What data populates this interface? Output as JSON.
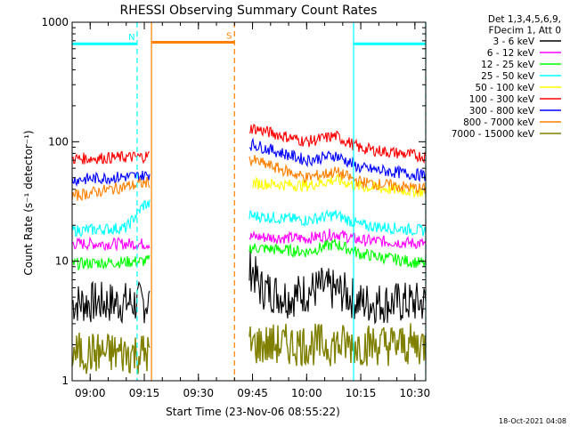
{
  "chart_data": {
    "type": "line",
    "title": "RHESSI Observing Summary Count Rates",
    "xlabel": "Start Time (23-Nov-06 08:55:22)",
    "ylabel": "Count Rate (s⁻¹ detector⁻¹)",
    "y_scale": "log",
    "ylim": [
      1,
      1000
    ],
    "xlim": [
      "08:55",
      "10:33"
    ],
    "x_ticks": [
      "09:00",
      "09:15",
      "09:30",
      "09:45",
      "10:00",
      "10:15",
      "10:30"
    ],
    "y_ticks": [
      "1",
      "10",
      "100",
      "1000"
    ],
    "legend_header": [
      "Det 1,3,4,5,6,9,",
      "FDecim 1, Att 0"
    ],
    "legend_position": "top-right",
    "series": [
      {
        "name": "3 - 6 keV",
        "color": "#000000",
        "x": [
          "08:55",
          "09:14",
          "09:15",
          "09:45",
          "09:47",
          "09:55",
          "10:04",
          "10:10",
          "10:15",
          "10:33"
        ],
        "y": [
          4.5,
          4.5,
          4.5,
          8.5,
          6.0,
          5.0,
          6.0,
          5.5,
          4.5,
          4.5
        ]
      },
      {
        "name": "6 - 12 keV",
        "color": "#ff00ff",
        "x": [
          "08:55",
          "09:15",
          "09:45",
          "10:00",
          "10:08",
          "10:15",
          "10:33"
        ],
        "y": [
          14,
          14,
          16,
          15.5,
          17,
          15,
          14
        ]
      },
      {
        "name": "12 - 25 keV",
        "color": "#00ff00",
        "x": [
          "08:55",
          "09:15",
          "09:45",
          "10:00",
          "10:08",
          "10:15",
          "10:33"
        ],
        "y": [
          9.5,
          10,
          13,
          12,
          14,
          11.5,
          9.5
        ]
      },
      {
        "name": "25 - 50 keV",
        "color": "#00ffff",
        "x": [
          "08:55",
          "09:10",
          "09:15",
          "09:45",
          "10:00",
          "10:08",
          "10:15",
          "10:33"
        ],
        "y": [
          18,
          19,
          30,
          24,
          22,
          24.5,
          20,
          18
        ]
      },
      {
        "name": "50 - 100 keV",
        "color": "#ffff00",
        "x": [
          "09:45",
          "10:00",
          "10:08",
          "10:15",
          "10:33"
        ],
        "y": [
          45,
          43,
          48,
          42,
          38
        ]
      },
      {
        "name": "100 - 300 keV",
        "color": "#ff0000",
        "x": [
          "08:55",
          "09:15",
          "09:45",
          "10:00",
          "10:08",
          "10:15",
          "10:33"
        ],
        "y": [
          72,
          75,
          130,
          100,
          112,
          88,
          75
        ]
      },
      {
        "name": "300 - 800 keV",
        "color": "#0000ff",
        "x": [
          "08:55",
          "09:15",
          "09:45",
          "10:00",
          "10:08",
          "10:15",
          "10:33"
        ],
        "y": [
          48,
          52,
          95,
          70,
          77,
          60,
          52
        ]
      },
      {
        "name": "800 - 7000 keV",
        "color": "#ff8000",
        "x": [
          "08:55",
          "09:15",
          "09:45",
          "10:00",
          "10:08",
          "10:15",
          "10:33"
        ],
        "y": [
          35,
          45,
          70,
          50,
          56,
          46,
          40
        ]
      },
      {
        "name": "7000 - 15000 keV",
        "color": "#808000",
        "x": [
          "08:55",
          "09:15",
          "09:45",
          "10:33"
        ],
        "y": [
          1.7,
          1.7,
          2.0,
          2.0
        ]
      }
    ],
    "annotations": [
      {
        "label": "S",
        "color": "#ff8000",
        "x_start": "09:17",
        "x_end": "09:40",
        "y": 680
      },
      {
        "label": "N",
        "color": "#00ffff",
        "x_start": "08:55",
        "x_end": "09:13",
        "y": 660
      },
      {
        "label": "",
        "color": "#00ffff",
        "x_start": "10:13",
        "x_end": "10:33",
        "y": 660
      }
    ],
    "vlines": [
      {
        "x": "09:13",
        "color": "#00ffff",
        "style": "dashed"
      },
      {
        "x": "09:17",
        "color": "#ff8000",
        "style": "solid"
      },
      {
        "x": "09:40",
        "color": "#ff8000",
        "style": "dashed"
      },
      {
        "x": "10:13",
        "color": "#00ffff",
        "style": "solid"
      },
      {
        "x": "10:33",
        "color": "#00ffff",
        "style": "dashed"
      }
    ]
  },
  "footer_timestamp": "18-Oct-2021 04:08"
}
